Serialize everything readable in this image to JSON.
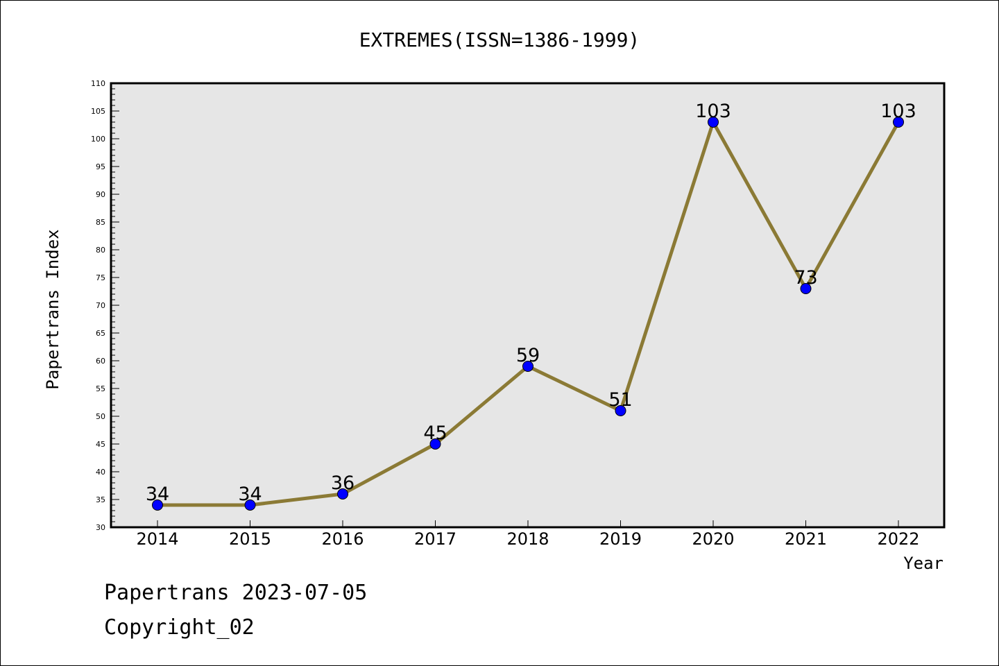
{
  "chart_data": {
    "type": "line",
    "title": "EXTREMES(ISSN=1386-1999)",
    "xlabel": "Year",
    "ylabel": "Papertrans Index",
    "categories": [
      "2014",
      "2015",
      "2016",
      "2017",
      "2018",
      "2019",
      "2020",
      "2021",
      "2022"
    ],
    "series": [
      {
        "values": [
          34,
          34,
          36,
          45,
          59,
          51,
          103,
          73,
          103
        ]
      }
    ],
    "data_labels": [
      "34",
      "34",
      "36",
      "45",
      "59",
      "51",
      "103",
      "73",
      "103"
    ],
    "ylim": [
      30,
      110
    ],
    "yticks": [
      "30",
      "35",
      "40",
      "45",
      "50",
      "55",
      "60",
      "65",
      "70",
      "75",
      "80",
      "85",
      "90",
      "95",
      "100",
      "105",
      "110"
    ],
    "grid": false,
    "legend": "none",
    "colors": {
      "line": "#8b7a35",
      "marker": "#0000ff",
      "plot_background": "#e6e6e6"
    }
  },
  "footer": {
    "date_line": "Papertrans 2023-07-05",
    "copyright": "Copyright_02"
  }
}
